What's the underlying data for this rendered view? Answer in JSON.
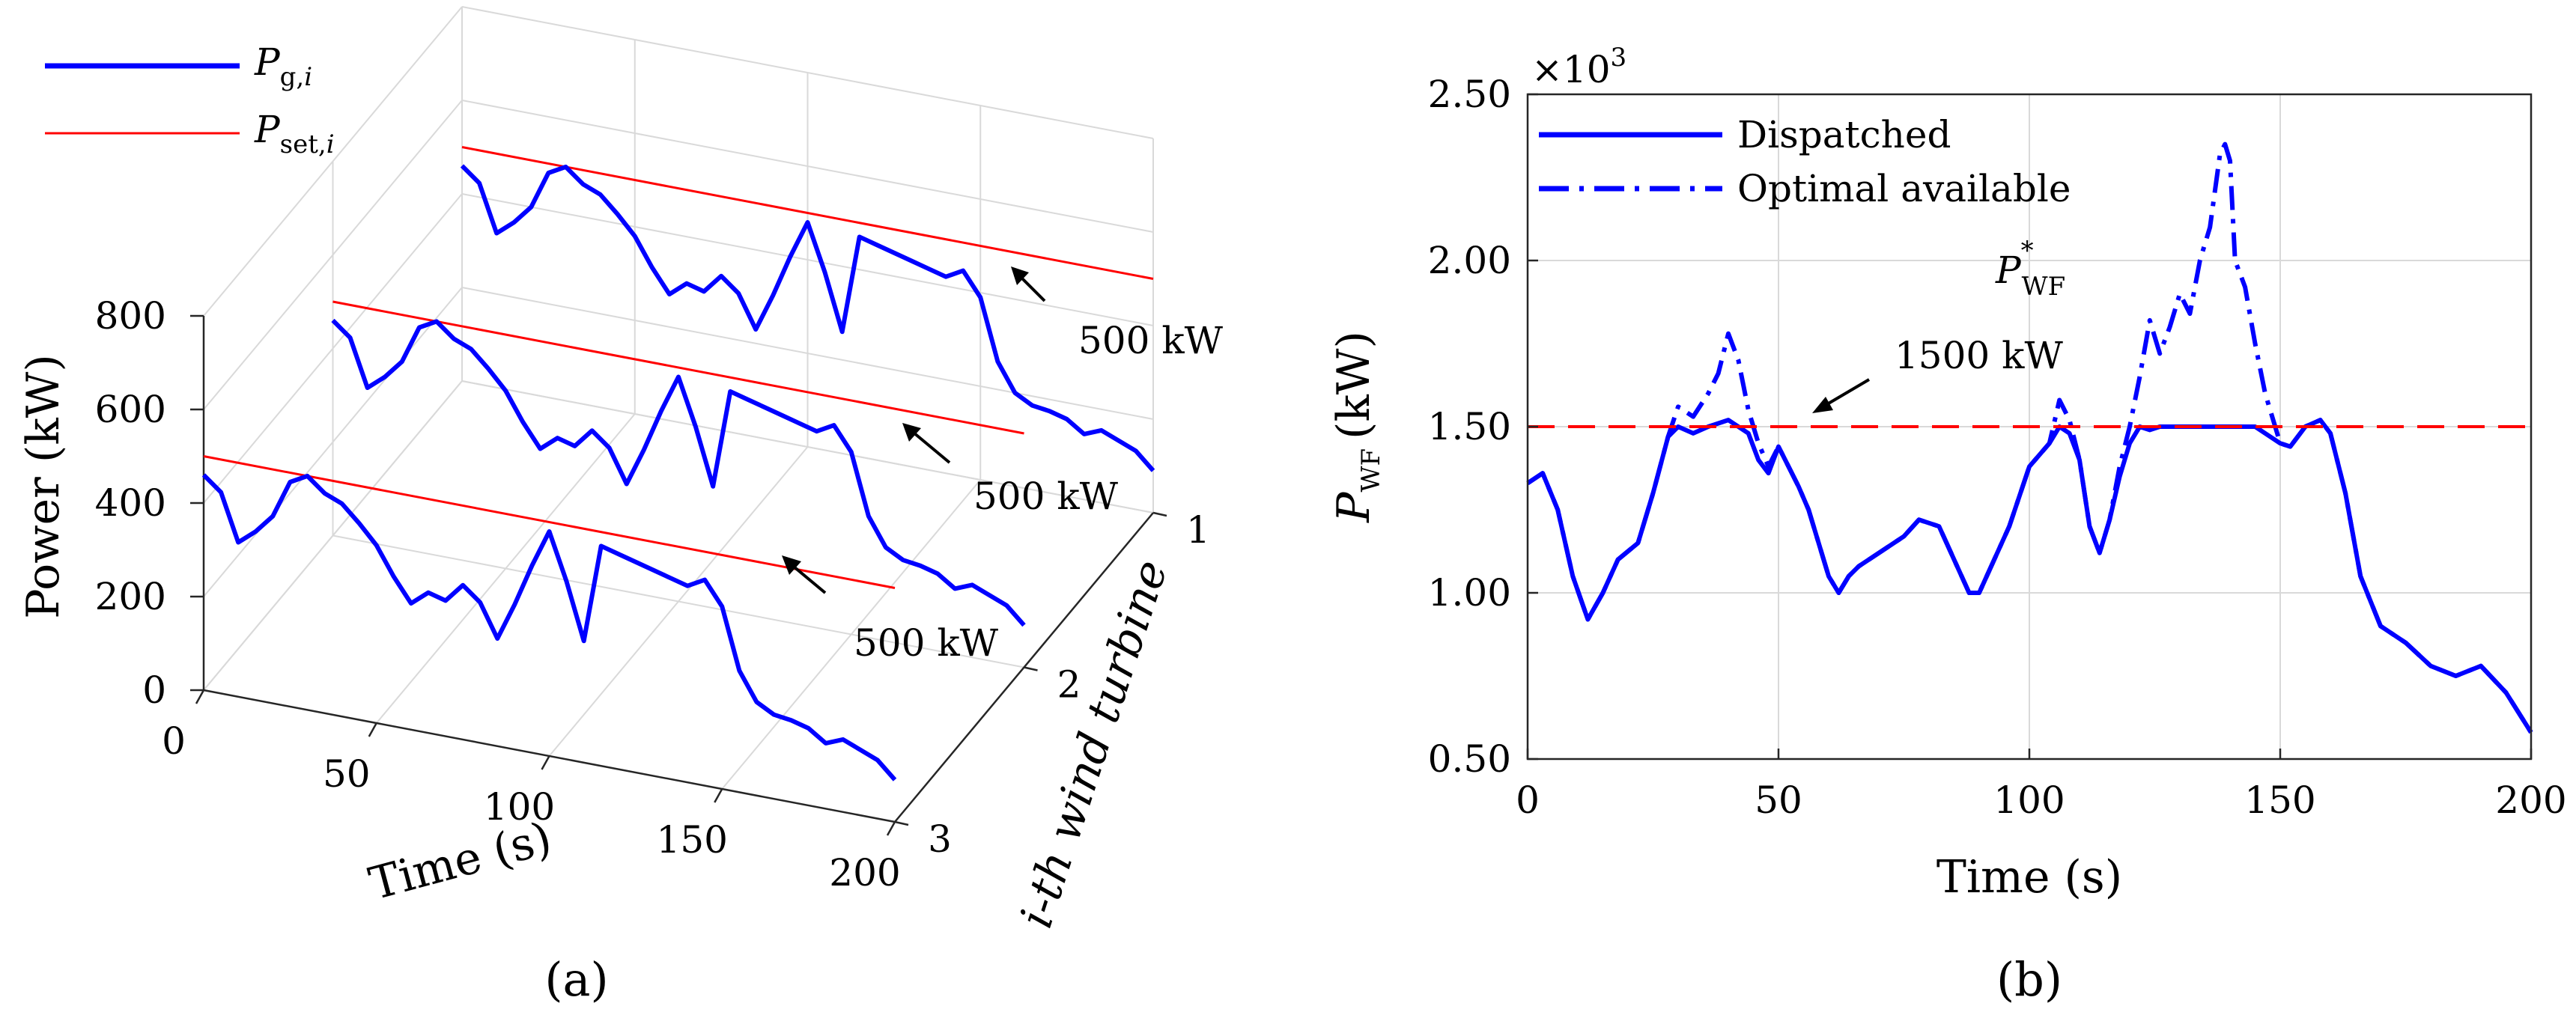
{
  "chart_data": [
    {
      "id": "a",
      "type": "line",
      "panel_label": "(a)",
      "projection": "3d",
      "xlabel": "Time (s)",
      "ylabel": "Power (kW)",
      "zlabel": "i-th wind turbine",
      "xlim": [
        0,
        200
      ],
      "ylim": [
        0,
        800
      ],
      "zlim": [
        1,
        3
      ],
      "xticks": [
        "0",
        "50",
        "100",
        "150",
        "200"
      ],
      "yticks": [
        "0",
        "200",
        "400",
        "600",
        "800"
      ],
      "zticks": [
        "1",
        "2",
        "3"
      ],
      "legend": [
        {
          "label": "P_g,i",
          "base": "P",
          "sub": "g,",
          "sub_italic": "i",
          "color": "#0000ff",
          "style": "solid-thick"
        },
        {
          "label": "P_set,i",
          "base": "P",
          "sub": "set,",
          "sub_italic": "i",
          "color": "#ff0000",
          "style": "solid-thin"
        }
      ],
      "setpoint_kW": 500,
      "annotations": [
        "500 kW",
        "500 kW",
        "500 kW"
      ],
      "series": [
        {
          "name": "P_g,i",
          "color": "#0000ff",
          "x": [
            0,
            5,
            10,
            15,
            20,
            25,
            30,
            35,
            40,
            45,
            50,
            55,
            60,
            65,
            70,
            75,
            80,
            85,
            90,
            95,
            100,
            105,
            110,
            115,
            120,
            125,
            130,
            135,
            140,
            145,
            150,
            155,
            160,
            165,
            170,
            175,
            180,
            185,
            190,
            195,
            200
          ],
          "y": [
            460,
            430,
            330,
            360,
            400,
            480,
            500,
            470,
            455,
            420,
            380,
            320,
            270,
            300,
            290,
            330,
            300,
            230,
            310,
            400,
            480,
            380,
            260,
            470,
            460,
            450,
            440,
            430,
            420,
            440,
            390,
            260,
            200,
            180,
            175,
            165,
            140,
            155,
            140,
            125,
            90
          ]
        },
        {
          "name": "P_set,i",
          "color": "#ff0000",
          "x": [
            0,
            200
          ],
          "y": [
            500,
            500
          ]
        }
      ]
    },
    {
      "id": "b",
      "type": "line",
      "panel_label": "(b)",
      "title": "",
      "xlabel": "Time (s)",
      "ylabel": "P_WF (kW)",
      "ylabel_base": "P",
      "ylabel_sub": "WF",
      "ylabel_unit": "(kW)",
      "exponent_label": "×10",
      "exponent_power": "3",
      "xlim": [
        0,
        200
      ],
      "ylim": [
        0.5,
        2.5
      ],
      "xticks": [
        "0",
        "50",
        "100",
        "150",
        "200"
      ],
      "yticks": [
        "0.50",
        "1.00",
        "1.50",
        "2.00",
        "2.50"
      ],
      "grid": true,
      "legend_position": "top-left",
      "annotation_label": "1500 kW",
      "pwf_star_base": "P",
      "pwf_star_sup": "*",
      "pwf_star_sub": "WF",
      "series": [
        {
          "name": "Dispatched",
          "color": "#0000ff",
          "style": "solid",
          "x": [
            0,
            3,
            6,
            9,
            12,
            15,
            18,
            22,
            25,
            28,
            30,
            33,
            36,
            40,
            44,
            46,
            48,
            50,
            52,
            54,
            56,
            58,
            60,
            62,
            64,
            66,
            70,
            75,
            78,
            82,
            85,
            88,
            90,
            93,
            96,
            100,
            104,
            106,
            108,
            110,
            112,
            114,
            116,
            118,
            120,
            122,
            124,
            126,
            130,
            135,
            140,
            145,
            150,
            152,
            155,
            158,
            160,
            163,
            166,
            170,
            175,
            180,
            185,
            190,
            195,
            200
          ],
          "y": [
            1.33,
            1.36,
            1.25,
            1.05,
            0.92,
            1.0,
            1.1,
            1.15,
            1.3,
            1.47,
            1.5,
            1.48,
            1.5,
            1.52,
            1.48,
            1.4,
            1.36,
            1.44,
            1.38,
            1.32,
            1.25,
            1.15,
            1.05,
            1.0,
            1.05,
            1.08,
            1.12,
            1.17,
            1.22,
            1.2,
            1.1,
            1.0,
            1.0,
            1.1,
            1.2,
            1.38,
            1.45,
            1.5,
            1.48,
            1.4,
            1.2,
            1.12,
            1.22,
            1.35,
            1.45,
            1.5,
            1.49,
            1.5,
            1.5,
            1.5,
            1.5,
            1.5,
            1.45,
            1.44,
            1.5,
            1.52,
            1.48,
            1.3,
            1.05,
            0.9,
            0.85,
            0.78,
            0.75,
            0.78,
            0.7,
            0.58
          ]
        },
        {
          "name": "Optimal available",
          "color": "#0000ff",
          "style": "dash-dot",
          "x": [
            0,
            3,
            6,
            9,
            12,
            15,
            18,
            22,
            25,
            28,
            30,
            33,
            36,
            38,
            40,
            42,
            44,
            46,
            48,
            50,
            52,
            54,
            56,
            58,
            60,
            62,
            64,
            66,
            70,
            75,
            78,
            82,
            85,
            88,
            90,
            93,
            96,
            100,
            104,
            106,
            108,
            110,
            112,
            114,
            116,
            118,
            120,
            122,
            124,
            126,
            128,
            130,
            132,
            134,
            136,
            138,
            139,
            140,
            141,
            143,
            145,
            147,
            150,
            152,
            155,
            158,
            160,
            163,
            166,
            170,
            175,
            180,
            185,
            190,
            195,
            200
          ],
          "y": [
            1.33,
            1.36,
            1.25,
            1.05,
            0.92,
            1.0,
            1.1,
            1.15,
            1.3,
            1.47,
            1.56,
            1.53,
            1.6,
            1.66,
            1.78,
            1.7,
            1.55,
            1.45,
            1.38,
            1.44,
            1.38,
            1.32,
            1.25,
            1.15,
            1.05,
            1.0,
            1.05,
            1.08,
            1.12,
            1.17,
            1.22,
            1.2,
            1.1,
            1.0,
            1.0,
            1.1,
            1.2,
            1.38,
            1.45,
            1.58,
            1.52,
            1.4,
            1.2,
            1.12,
            1.22,
            1.38,
            1.5,
            1.65,
            1.82,
            1.72,
            1.8,
            1.9,
            1.84,
            2.0,
            2.1,
            2.32,
            2.35,
            2.3,
            2.0,
            1.92,
            1.75,
            1.6,
            1.45,
            1.44,
            1.5,
            1.52,
            1.48,
            1.3,
            1.05,
            0.9,
            0.85,
            0.78,
            0.75,
            0.78,
            0.7,
            0.58
          ]
        },
        {
          "name": "P*_WF",
          "color": "#ff0000",
          "style": "dashed",
          "x": [
            0,
            200
          ],
          "y": [
            1.5,
            1.5
          ]
        }
      ]
    }
  ]
}
